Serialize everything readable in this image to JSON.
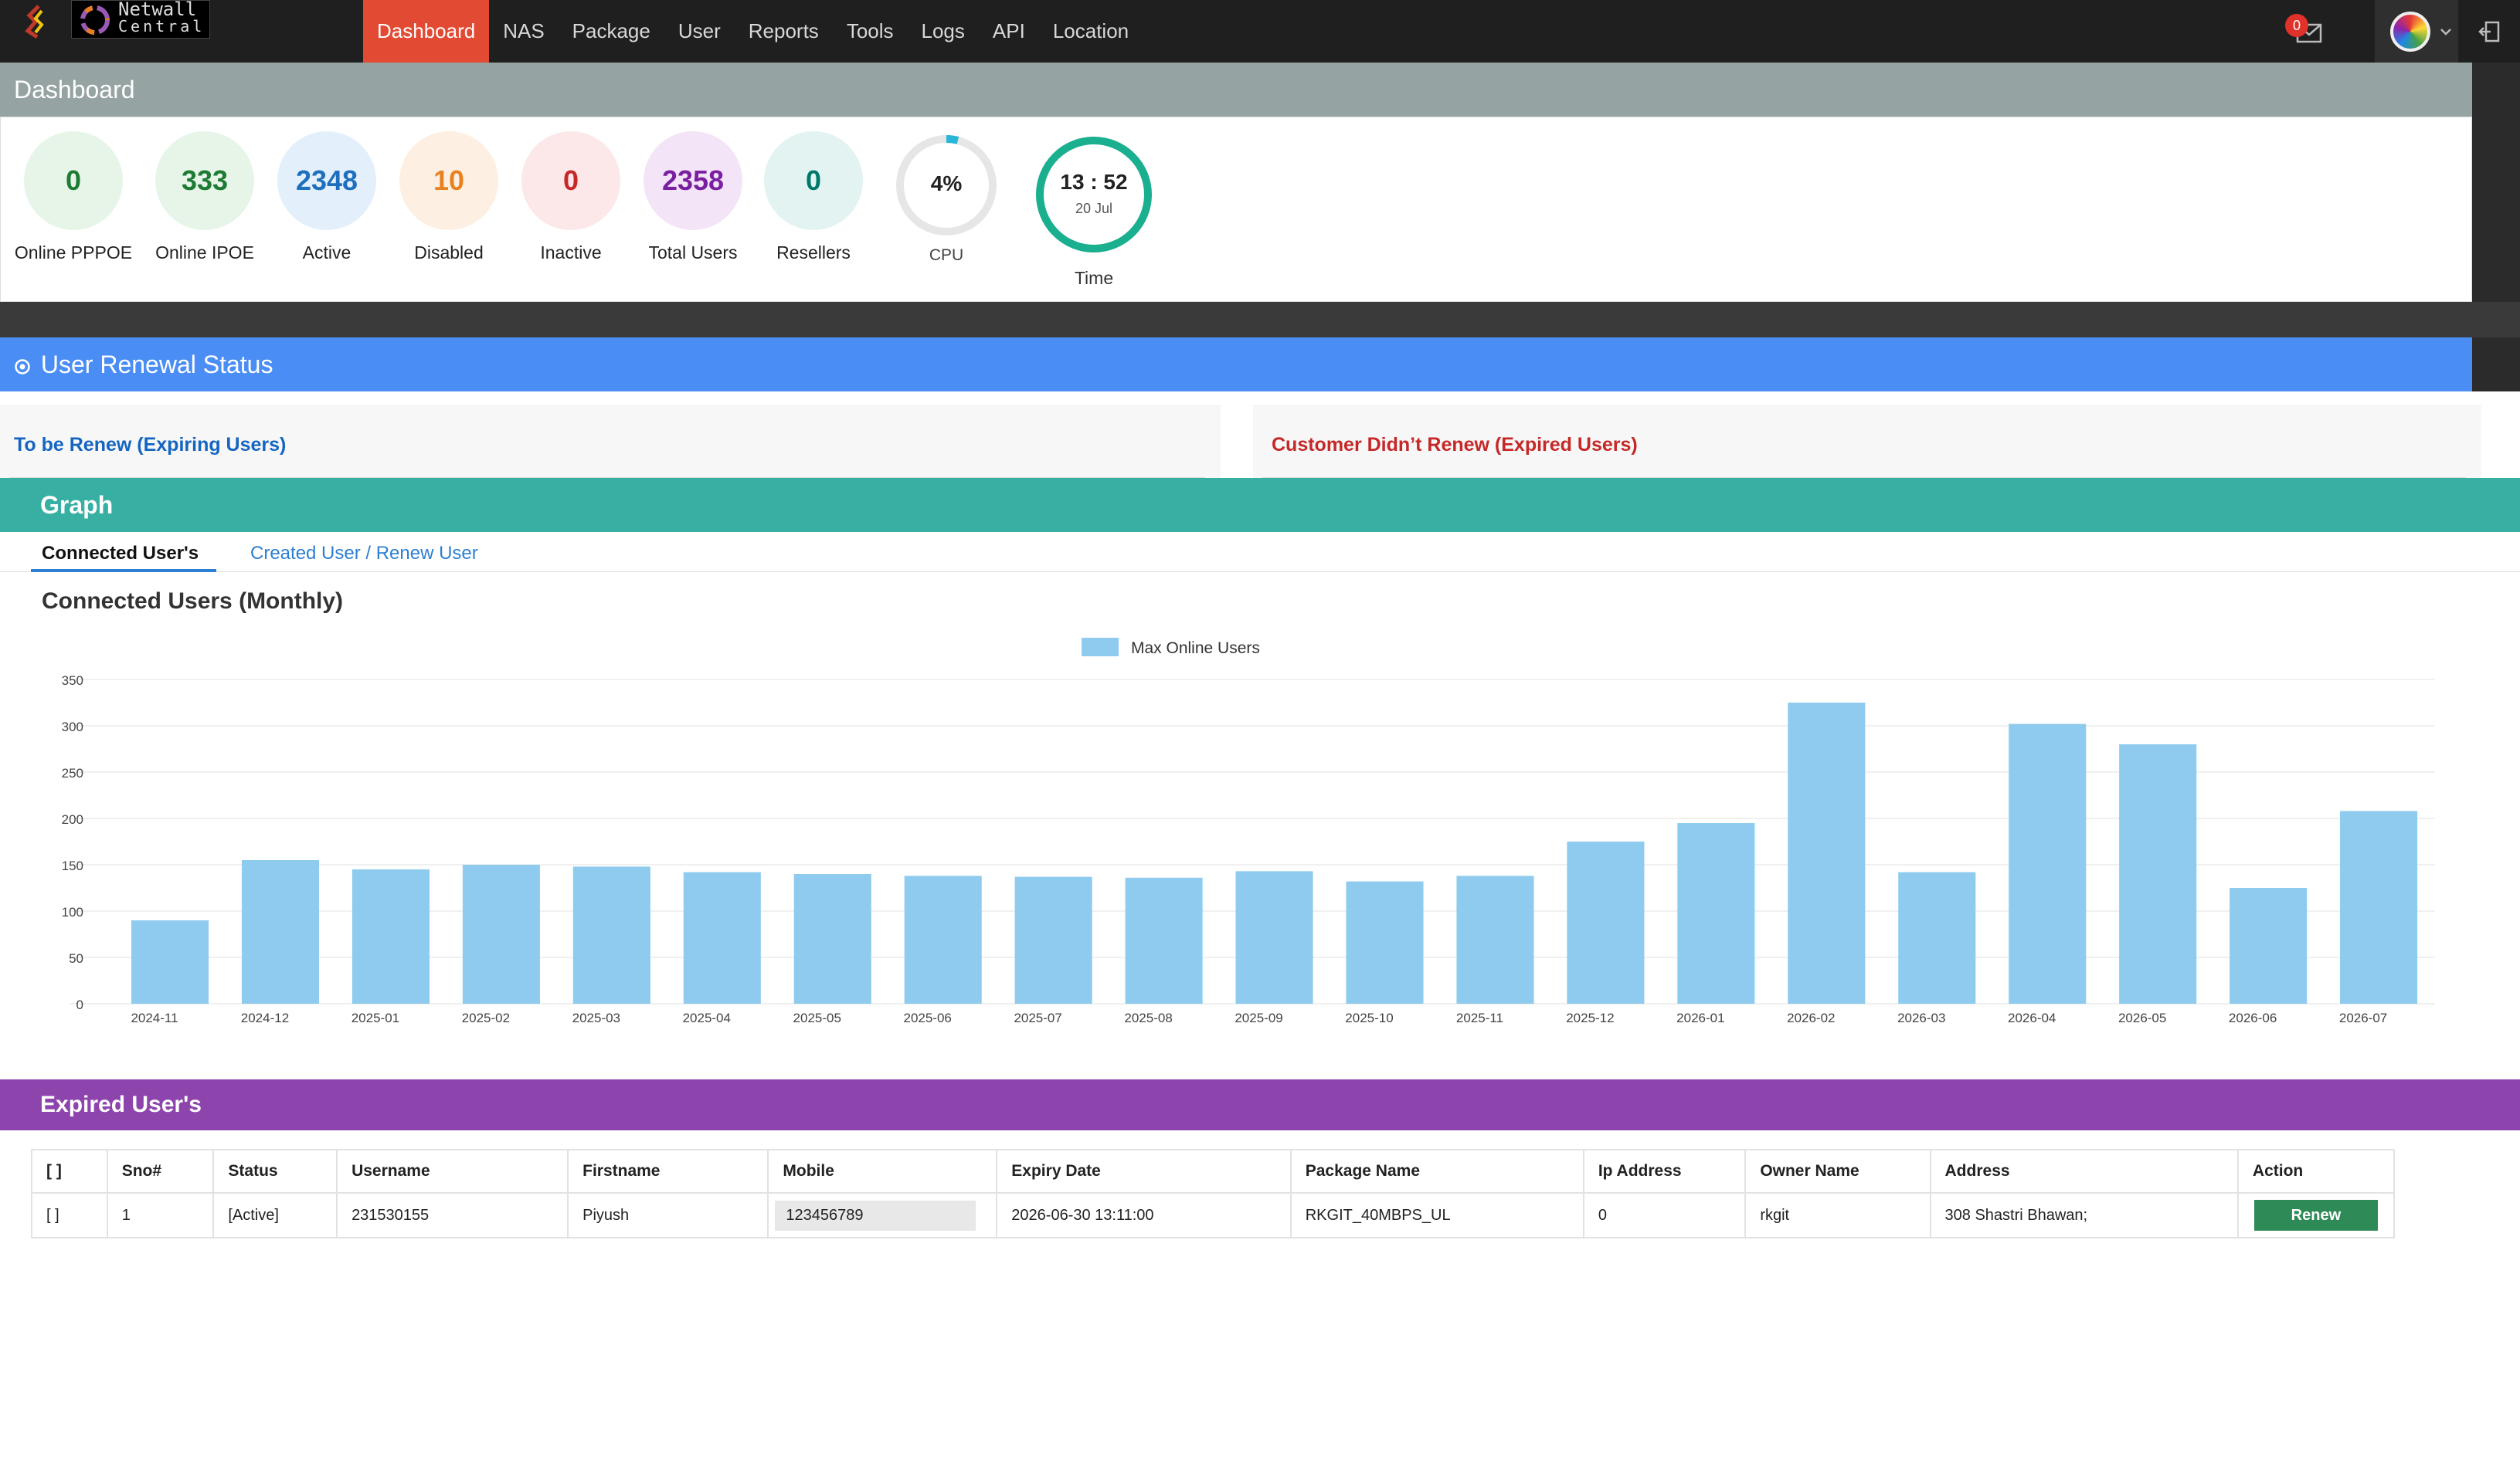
{
  "app": {
    "logo_line1": "Netwall",
    "logo_line2": "Central"
  },
  "nav": {
    "items": [
      "Dashboard",
      "NAS",
      "Package",
      "User",
      "Reports",
      "Tools",
      "Logs",
      "API",
      "Location"
    ],
    "active": "Dashboard"
  },
  "topbar": {
    "message_count": "0",
    "icons": [
      "messages-icon",
      "avatar",
      "chevron-down-icon",
      "logout-icon"
    ]
  },
  "dashboard": {
    "title": "Dashboard",
    "stats": [
      {
        "value": "0",
        "label": "Online PPPOE",
        "color": "#1e7b34",
        "bg": "#e7f5e9"
      },
      {
        "value": "333",
        "label": "Online IPOE",
        "color": "#1e7b34",
        "bg": "#e7f5e9"
      },
      {
        "value": "2348",
        "label": "Active",
        "color": "#1f6fbf",
        "bg": "#e3f0fb"
      },
      {
        "value": "10",
        "label": "Disabled",
        "color": "#e8821f",
        "bg": "#fdf0e2"
      },
      {
        "value": "0",
        "label": "Inactive",
        "color": "#c62828",
        "bg": "#fce8e8"
      },
      {
        "value": "2358",
        "label": "Total Users",
        "color": "#7b1fa2",
        "bg": "#f3e5f7"
      },
      {
        "value": "0",
        "label": "Resellers",
        "color": "#00796b",
        "bg": "#e2f3f1"
      }
    ],
    "cpu": {
      "value": "4%",
      "label": "CPU",
      "percent": 4
    },
    "time": {
      "value": "13 : 52",
      "date": "20 Jul",
      "label": "Time"
    }
  },
  "renewal": {
    "title": "User Renewal Status",
    "left_title": "To be Renew (Expiring Users)",
    "right_title": "Customer Didn’t Renew (Expired Users)"
  },
  "graph": {
    "title": "Graph",
    "tabs": [
      "Connected User's",
      "Created User / Renew User"
    ],
    "chart_title": "Connected Users (Monthly)"
  },
  "chart_data": {
    "type": "bar",
    "title": "Connected Users (Monthly)",
    "series": [
      {
        "name": "Max Online Users",
        "color": "#8ecbee",
        "values": [
          90,
          155,
          145,
          150,
          148,
          142,
          140,
          138,
          137,
          136,
          143,
          132,
          138,
          175,
          195,
          325,
          142,
          302,
          280,
          125,
          208
        ]
      }
    ],
    "categories": [
      "2024-11",
      "2024-12",
      "2025-01",
      "2025-02",
      "2025-03",
      "2025-04",
      "2025-05",
      "2025-06",
      "2025-07",
      "2025-08",
      "2025-09",
      "2025-10",
      "2025-11",
      "2025-12",
      "2026-01",
      "2026-02",
      "2026-03",
      "2026-04",
      "2026-05",
      "2026-06",
      "2026-07"
    ],
    "ylim": [
      0,
      350
    ],
    "yticks": [
      0,
      50,
      100,
      150,
      200,
      250,
      300,
      350
    ],
    "grid": true,
    "legend": "top-center"
  },
  "expired": {
    "title": "Expired User's",
    "columns": [
      "[ ]",
      "Sno#",
      "Status",
      "Username",
      "Firstname",
      "Mobile",
      "Expiry Date",
      "Package Name",
      "Ip Address",
      "Owner Name",
      "Address",
      "Action"
    ],
    "rows": [
      {
        "check": "[ ]",
        "sno": "1",
        "status": "[Active]",
        "username": "231530155",
        "firstname": "Piyush",
        "mobile": "123456789",
        "expiry": "2026-06-30 13:11:00",
        "package": "RKGIT_40MBPS_UL",
        "ip": "0",
        "owner": "rkgit",
        "address": "308 Shastri Bhawan;",
        "action": "Renew"
      }
    ]
  }
}
